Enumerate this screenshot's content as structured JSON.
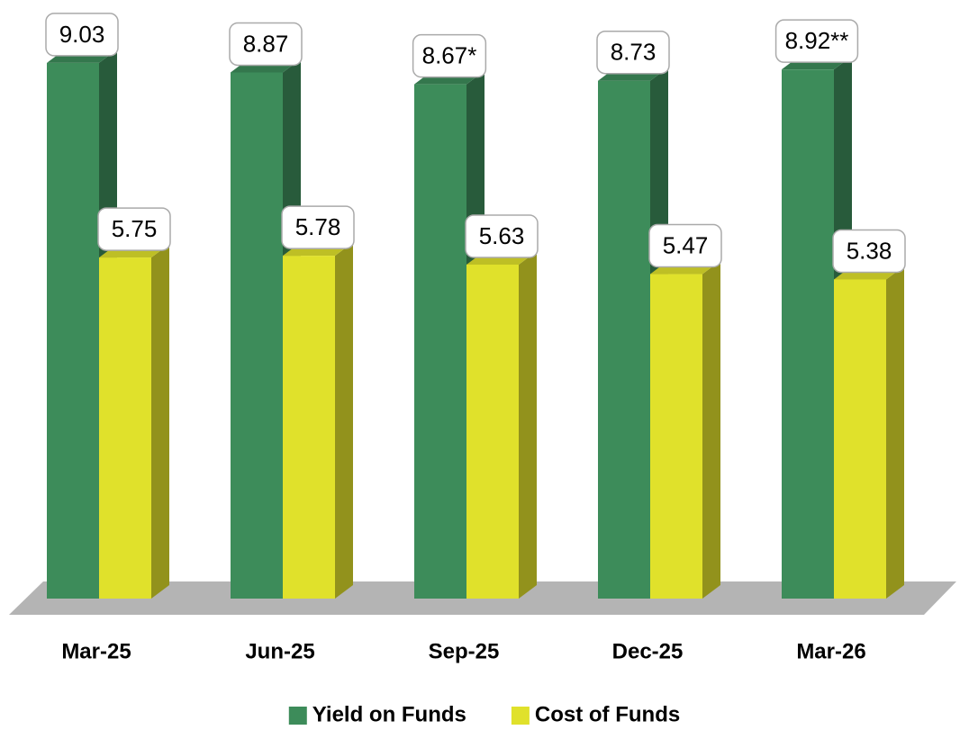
{
  "chart_data": {
    "type": "bar3d",
    "categories": [
      "Mar-25",
      "Jun-25",
      "Sep-25",
      "Dec-25",
      "Mar-26"
    ],
    "series": [
      {
        "name": "Yield on Funds",
        "color": "#3d8c5a",
        "values": [
          9.03,
          8.87,
          8.67,
          8.73,
          8.92
        ],
        "value_labels": [
          "9.03",
          "8.87",
          "8.67*",
          "8.73",
          "8.92**"
        ]
      },
      {
        "name": "Cost of Funds",
        "color": "#e0e12b",
        "values": [
          5.75,
          5.78,
          5.63,
          5.47,
          5.38
        ]
      }
    ],
    "ylim": [
      0,
      10
    ],
    "legend": "bottom"
  }
}
